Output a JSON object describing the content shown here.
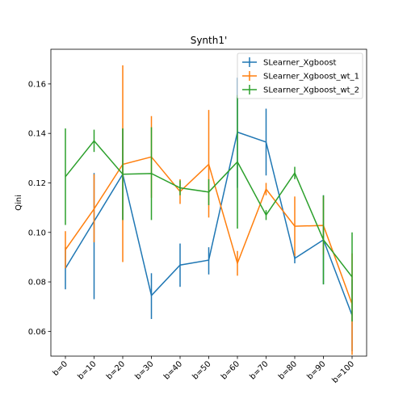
{
  "chart_data": {
    "type": "line",
    "title": "Synth1'",
    "xlabel": "",
    "ylabel": "Qini",
    "categories": [
      "b=0",
      "b=10",
      "b=20",
      "b=30",
      "b=40",
      "b=50",
      "b=60",
      "b=70",
      "b=80",
      "b=90",
      "b=100"
    ],
    "ylim": [
      0.05,
      0.174
    ],
    "yticks": [
      0.06,
      0.08,
      0.1,
      0.12,
      0.14,
      0.16
    ],
    "ytick_labels": [
      "0.06",
      "0.08",
      "0.10",
      "0.12",
      "0.14",
      "0.16"
    ],
    "grid": false,
    "legend_position": "top-right",
    "series": [
      {
        "name": "SLearner_Xgboost",
        "color": "#1f77b4",
        "values": [
          0.0855,
          0.1045,
          0.1235,
          0.0745,
          0.0868,
          0.0888,
          0.1405,
          0.1365,
          0.0895,
          0.097,
          0.0665
        ],
        "lower": [
          0.077,
          0.073,
          0.105,
          0.065,
          0.078,
          0.083,
          0.118,
          0.123,
          0.0875,
          0.079,
          0.052
        ],
        "upper": [
          0.094,
          0.124,
          0.142,
          0.0835,
          0.0955,
          0.094,
          0.1625,
          0.15,
          0.0915,
          0.115,
          0.081
        ]
      },
      {
        "name": "SLearner_Xgboost_wt_1",
        "color": "#ff7f0e",
        "values": [
          0.093,
          0.1095,
          0.1275,
          0.1305,
          0.1165,
          0.1275,
          0.0875,
          0.1175,
          0.1025,
          0.1028,
          0.071
        ],
        "lower": [
          0.0855,
          0.096,
          0.088,
          0.114,
          0.1115,
          0.106,
          0.0825,
          0.115,
          0.0905,
          0.091,
          0.0505
        ],
        "upper": [
          0.1005,
          0.1235,
          0.1675,
          0.147,
          0.1215,
          0.1495,
          0.0925,
          0.12,
          0.1145,
          0.1145,
          0.0915
        ]
      },
      {
        "name": "SLearner_Xgboost_wt_2",
        "color": "#2ca02c",
        "values": [
          0.1225,
          0.137,
          0.1235,
          0.1238,
          0.118,
          0.1163,
          0.1285,
          0.107,
          0.124,
          0.097,
          0.082
        ],
        "lower": [
          0.103,
          0.1325,
          0.105,
          0.105,
          0.115,
          0.111,
          0.1015,
          0.105,
          0.1215,
          0.079,
          0.064
        ],
        "upper": [
          0.142,
          0.1415,
          0.142,
          0.1425,
          0.121,
          0.1215,
          0.1555,
          0.109,
          0.1265,
          0.115,
          0.1
        ]
      }
    ]
  }
}
